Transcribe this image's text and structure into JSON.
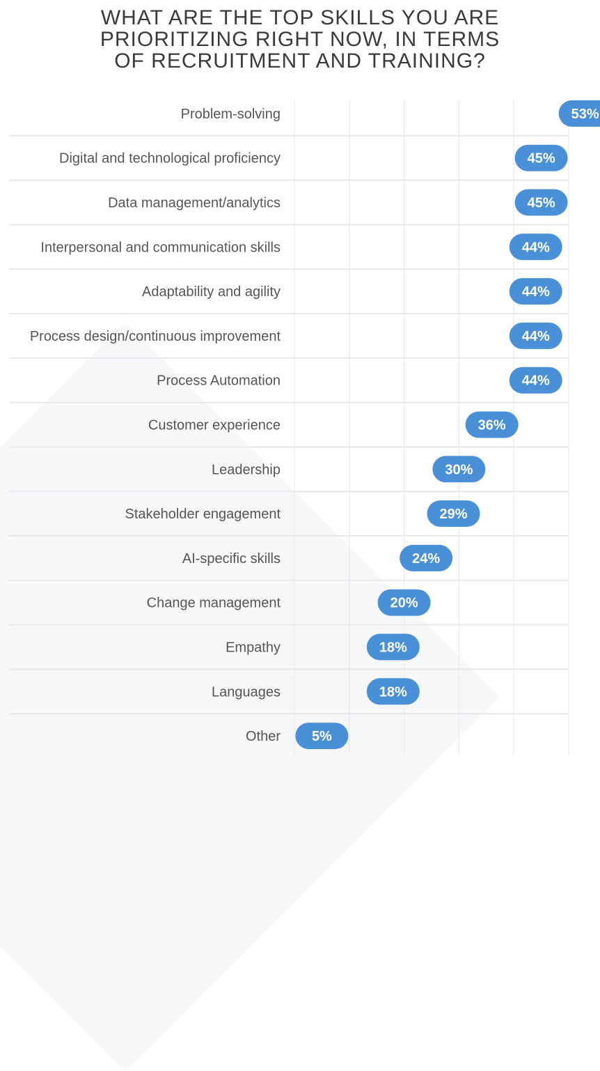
{
  "header": {
    "title_lines": [
      "WHAT ARE THE TOP SKILLS YOU ARE",
      "PRIORITIZING RIGHT NOW, IN TERMS",
      "OF RECRUITMENT AND TRAINING?"
    ]
  },
  "chart_data": {
    "type": "bar",
    "orientation": "horizontal",
    "title": "WHAT ARE THE TOP SKILLS YOU ARE PRIORITIZING RIGHT NOW, IN TERMS OF RECRUITMENT AND TRAINING?",
    "categories": [
      "Problem-solving",
      "Digital and technological proficiency",
      "Data management/analytics",
      "Interpersonal and communication skills",
      "Adaptability and agility",
      "Process design/continuous improvement",
      "Process Automation",
      "Customer experience",
      "Leadership",
      "Stakeholder engagement",
      "AI-specific skills",
      "Change management",
      "Empathy",
      "Languages",
      "Other"
    ],
    "values": [
      53,
      45,
      45,
      44,
      44,
      44,
      44,
      36,
      30,
      29,
      24,
      20,
      18,
      18,
      5
    ],
    "value_labels": [
      "53%",
      "45%",
      "45%",
      "44%",
      "44%",
      "44%",
      "44%",
      "36%",
      "30%",
      "29%",
      "24%",
      "20%",
      "18%",
      "18%",
      "5%"
    ],
    "xlim": [
      0,
      50
    ],
    "grid": true,
    "marker_color": "#4a90d9"
  }
}
